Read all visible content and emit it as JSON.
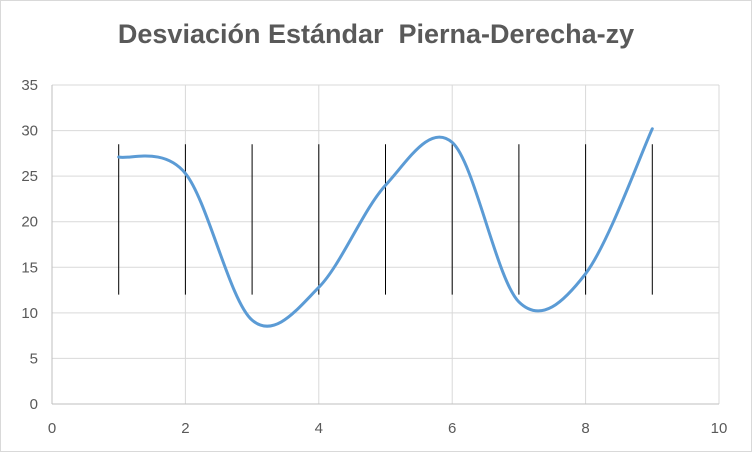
{
  "chart_data": {
    "type": "line",
    "title": "Desviación Estándar  Pierna-Derecha-zy",
    "xlabel": "",
    "ylabel": "",
    "xlim": [
      0,
      10
    ],
    "ylim": [
      0,
      35
    ],
    "x_ticks": [
      0,
      2,
      4,
      6,
      8,
      10
    ],
    "y_ticks": [
      0,
      5,
      10,
      15,
      20,
      25,
      30,
      35
    ],
    "grid": true,
    "legend": "none",
    "line_color": "#5b9bd5",
    "series": [
      {
        "x": [
          1,
          2,
          3,
          4,
          5,
          6,
          7,
          8,
          9
        ],
        "values": [
          27.1,
          25.3,
          9.2,
          12.8,
          24.0,
          28.7,
          11.2,
          14.3,
          30.2
        ]
      }
    ],
    "error_bars": {
      "color": "#000000",
      "low": [
        12,
        12,
        12,
        12,
        12,
        12,
        12,
        12,
        12
      ],
      "high": [
        28.5,
        28.5,
        28.5,
        28.5,
        28.5,
        28.5,
        28.5,
        28.5,
        28.5
      ]
    }
  }
}
